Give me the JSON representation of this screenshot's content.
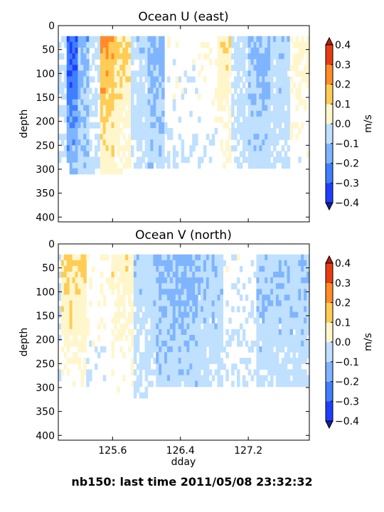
{
  "figure": {
    "suptitle": "nb150: last time 2011/05/08 23:32:32"
  },
  "chart_data": [
    {
      "type": "heatmap",
      "title": "Ocean U (east)",
      "xlabel": "",
      "ylabel": "depth",
      "xlim": [
        124.96,
        127.92
      ],
      "ylim": [
        410,
        0
      ],
      "yticks": [
        0,
        50,
        100,
        150,
        200,
        250,
        300,
        350,
        400
      ],
      "xticks": [
        125.6,
        126.4,
        127.2
      ],
      "xtick_labels_visible": false,
      "y_inverted": true,
      "colorbar": {
        "label": "m/s",
        "levels": [
          -0.4,
          -0.3,
          -0.2,
          -0.1,
          0.0,
          0.1,
          0.2,
          0.3,
          0.4
        ],
        "tick_labels": [
          "0.4",
          "0.3",
          "0.2",
          "0.1",
          "0.0",
          "−0.1",
          "−0.2",
          "−0.3",
          "−0.4"
        ],
        "extend": "both",
        "colors": [
          "#1f3fff",
          "#3f7fff",
          "#7fb4ff",
          "#bfe0ff",
          "#ffffff",
          "#fff6cc",
          "#ffcc55",
          "#ff8c28",
          "#e83c14"
        ],
        "over_color": "#b81c10",
        "under_color": "#1c1c9c"
      },
      "bands": [
        {
          "x": [
            125.05,
            125.18
          ],
          "value": -0.32
        },
        {
          "x": [
            125.18,
            125.32
          ],
          "value": -0.15
        },
        {
          "x": [
            125.45,
            125.62
          ],
          "value": 0.34
        },
        {
          "x": [
            125.62,
            125.8
          ],
          "value": 0.22
        },
        {
          "x": [
            125.8,
            126.0
          ],
          "value": -0.05
        },
        {
          "x": [
            126.0,
            126.2
          ],
          "value": -0.14
        },
        {
          "x": [
            126.2,
            126.6
          ],
          "value": 0.06
        },
        {
          "x": [
            126.6,
            126.85
          ],
          "value": 0.08
        },
        {
          "x": [
            126.85,
            127.0
          ],
          "value": 0.18
        },
        {
          "x": [
            127.0,
            127.2
          ],
          "value": -0.04
        },
        {
          "x": [
            127.2,
            127.45
          ],
          "value": -0.13
        },
        {
          "x": [
            127.45,
            127.7
          ],
          "value": -0.06
        },
        {
          "x": [
            127.7,
            127.92
          ],
          "value": 0.12
        }
      ]
    },
    {
      "type": "heatmap",
      "title": "Ocean V (north)",
      "xlabel": "dday",
      "ylabel": "depth",
      "xlim": [
        124.96,
        127.92
      ],
      "ylim": [
        410,
        0
      ],
      "yticks": [
        0,
        50,
        100,
        150,
        200,
        250,
        300,
        350,
        400
      ],
      "xticks": [
        125.6,
        126.4,
        127.2
      ],
      "xtick_labels": [
        "125.6",
        "126.4",
        "127.2"
      ],
      "y_inverted": true,
      "colorbar": {
        "label": "m/s",
        "levels": [
          -0.4,
          -0.3,
          -0.2,
          -0.1,
          0.0,
          0.1,
          0.2,
          0.3,
          0.4
        ],
        "tick_labels": [
          "0.4",
          "0.3",
          "0.2",
          "0.1",
          "0.0",
          "−0.1",
          "−0.2",
          "−0.3",
          "−0.4"
        ],
        "extend": "both",
        "colors": [
          "#1f3fff",
          "#3f7fff",
          "#7fb4ff",
          "#bfe0ff",
          "#ffffff",
          "#fff6cc",
          "#ffcc55",
          "#ff8c28",
          "#e83c14"
        ],
        "over_color": "#b81c10",
        "under_color": "#1c1c9c"
      },
      "bands": [
        {
          "x": [
            125.0,
            125.3
          ],
          "value": 0.22
        },
        {
          "x": [
            125.3,
            125.6
          ],
          "value": 0.08
        },
        {
          "x": [
            125.6,
            125.85
          ],
          "value": 0.16
        },
        {
          "x": [
            125.85,
            126.1
          ],
          "value": -0.06
        },
        {
          "x": [
            126.1,
            126.6
          ],
          "value": -0.14
        },
        {
          "x": [
            126.6,
            126.9
          ],
          "value": -0.07
        },
        {
          "x": [
            126.9,
            127.3
          ],
          "value": 0.05
        },
        {
          "x": [
            127.3,
            127.92
          ],
          "value": -0.08
        }
      ]
    }
  ]
}
